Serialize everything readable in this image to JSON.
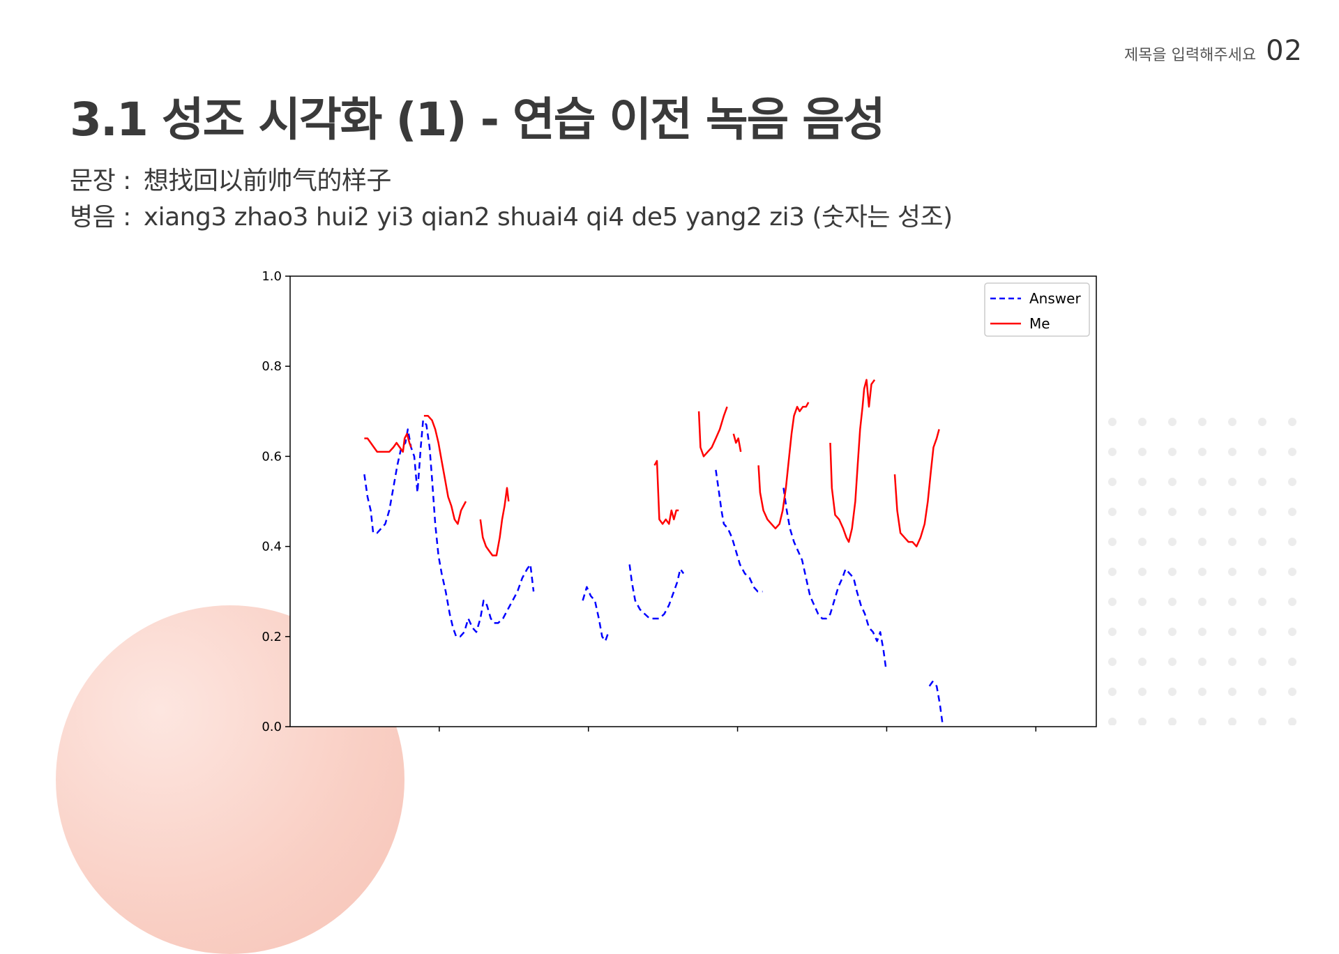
{
  "header": {
    "label": "제목을 입력해주세요",
    "page": "02"
  },
  "title": "3.1 성조 시각화 (1) - 연습 이전 녹음 음성",
  "sentence": {
    "key": "문장 :",
    "value": "想找回以前帅气的样子"
  },
  "pinyin": {
    "key": "병음 :",
    "value": "xiang3 zhao3 hui2 yi3 qian2 shuai4 qi4 de5 yang2 zi3 (숫자는 성조)"
  },
  "colors": {
    "answer": "#0000ff",
    "me": "#ff0000",
    "accent": "#f7c3b7"
  },
  "chart_data": {
    "type": "line",
    "title": "",
    "xlabel": "",
    "ylabel": "",
    "xlim": [
      0,
      100
    ],
    "ylim": [
      0.0,
      1.0
    ],
    "yticks": [
      "0.0",
      "0.2",
      "0.4",
      "0.6",
      "0.8",
      "1.0"
    ],
    "xticks": [
      18.5,
      37,
      55.5,
      74,
      92.5
    ],
    "legend_position": "top-right",
    "grid": false,
    "series": [
      {
        "name": "Answer",
        "style": "dashed",
        "segments": [
          [
            [
              9.2,
              0.56
            ],
            [
              9.6,
              0.51
            ],
            [
              10.0,
              0.48
            ],
            [
              10.3,
              0.43
            ],
            [
              10.8,
              0.43
            ],
            [
              11.3,
              0.44
            ],
            [
              11.8,
              0.45
            ],
            [
              12.3,
              0.48
            ],
            [
              12.8,
              0.53
            ],
            [
              13.3,
              0.58
            ],
            [
              13.8,
              0.62
            ],
            [
              14.3,
              0.63
            ],
            [
              14.6,
              0.66
            ],
            [
              15.0,
              0.62
            ],
            [
              15.4,
              0.6
            ],
            [
              15.8,
              0.52
            ],
            [
              16.2,
              0.62
            ],
            [
              16.5,
              0.68
            ],
            [
              16.9,
              0.67
            ],
            [
              17.3,
              0.62
            ],
            [
              17.6,
              0.55
            ],
            [
              18.0,
              0.45
            ],
            [
              18.4,
              0.38
            ],
            [
              18.8,
              0.34
            ],
            [
              19.3,
              0.3
            ],
            [
              19.8,
              0.25
            ],
            [
              20.2,
              0.22
            ],
            [
              20.6,
              0.2
            ],
            [
              21.1,
              0.2
            ],
            [
              21.6,
              0.21
            ],
            [
              22.1,
              0.24
            ],
            [
              22.6,
              0.22
            ],
            [
              23.1,
              0.21
            ],
            [
              23.6,
              0.24
            ],
            [
              24.0,
              0.28
            ],
            [
              24.4,
              0.27
            ],
            [
              24.9,
              0.24
            ],
            [
              25.3,
              0.23
            ],
            [
              25.8,
              0.23
            ],
            [
              26.4,
              0.24
            ],
            [
              27.0,
              0.26
            ],
            [
              27.6,
              0.28
            ],
            [
              28.2,
              0.3
            ],
            [
              28.8,
              0.33
            ],
            [
              29.4,
              0.35
            ],
            [
              29.8,
              0.36
            ],
            [
              30.2,
              0.3
            ]
          ],
          [
            [
              36.3,
              0.28
            ],
            [
              36.8,
              0.31
            ],
            [
              37.3,
              0.29
            ],
            [
              37.8,
              0.28
            ],
            [
              38.3,
              0.24
            ],
            [
              38.7,
              0.2
            ],
            [
              39.1,
              0.19
            ],
            [
              39.5,
              0.21
            ]
          ],
          [
            [
              42.1,
              0.36
            ],
            [
              42.4,
              0.32
            ],
            [
              42.8,
              0.28
            ],
            [
              43.4,
              0.26
            ],
            [
              44.0,
              0.25
            ],
            [
              44.6,
              0.24
            ],
            [
              45.2,
              0.24
            ],
            [
              45.8,
              0.24
            ],
            [
              46.4,
              0.25
            ],
            [
              47.0,
              0.27
            ],
            [
              47.6,
              0.3
            ],
            [
              48.0,
              0.32
            ],
            [
              48.4,
              0.35
            ],
            [
              48.8,
              0.34
            ]
          ],
          [
            [
              52.8,
              0.57
            ],
            [
              53.2,
              0.52
            ],
            [
              53.5,
              0.48
            ],
            [
              53.8,
              0.45
            ],
            [
              54.3,
              0.44
            ],
            [
              54.8,
              0.42
            ],
            [
              55.3,
              0.39
            ],
            [
              55.8,
              0.36
            ],
            [
              56.4,
              0.34
            ],
            [
              57.0,
              0.33
            ],
            [
              57.5,
              0.31
            ],
            [
              58.0,
              0.3
            ],
            [
              58.6,
              0.3
            ]
          ],
          [
            [
              61.2,
              0.53
            ],
            [
              61.6,
              0.48
            ],
            [
              62.0,
              0.44
            ],
            [
              62.5,
              0.41
            ],
            [
              63.0,
              0.39
            ],
            [
              63.5,
              0.37
            ],
            [
              64.0,
              0.33
            ],
            [
              64.5,
              0.29
            ],
            [
              65.0,
              0.27
            ],
            [
              65.5,
              0.25
            ],
            [
              66.0,
              0.24
            ],
            [
              66.5,
              0.24
            ],
            [
              67.0,
              0.25
            ],
            [
              67.5,
              0.28
            ],
            [
              68.0,
              0.31
            ],
            [
              68.5,
              0.33
            ],
            [
              68.9,
              0.35
            ],
            [
              69.4,
              0.34
            ],
            [
              69.9,
              0.33
            ],
            [
              70.3,
              0.3
            ],
            [
              70.8,
              0.27
            ],
            [
              71.3,
              0.25
            ],
            [
              71.8,
              0.22
            ],
            [
              72.3,
              0.21
            ],
            [
              72.8,
              0.19
            ],
            [
              73.2,
              0.21
            ],
            [
              73.6,
              0.17
            ],
            [
              73.9,
              0.13
            ]
          ],
          [
            [
              79.3,
              0.09
            ],
            [
              79.7,
              0.1
            ],
            [
              80.2,
              0.09
            ],
            [
              80.6,
              0.05
            ],
            [
              80.9,
              0.01
            ]
          ]
        ]
      },
      {
        "name": "Me",
        "style": "solid",
        "segments": [
          [
            [
              9.2,
              0.64
            ],
            [
              9.6,
              0.64
            ],
            [
              10.0,
              0.63
            ],
            [
              10.4,
              0.62
            ],
            [
              10.8,
              0.61
            ],
            [
              11.3,
              0.61
            ],
            [
              11.8,
              0.61
            ],
            [
              12.3,
              0.61
            ],
            [
              12.8,
              0.62
            ],
            [
              13.2,
              0.63
            ],
            [
              13.6,
              0.62
            ],
            [
              14.0,
              0.61
            ],
            [
              14.2,
              0.64
            ],
            [
              14.5,
              0.65
            ],
            [
              14.8,
              0.63
            ],
            [
              15.0,
              0.62
            ]
          ],
          [
            [
              16.6,
              0.69
            ],
            [
              17.1,
              0.69
            ],
            [
              17.6,
              0.68
            ],
            [
              18.0,
              0.66
            ],
            [
              18.4,
              0.63
            ],
            [
              18.8,
              0.59
            ],
            [
              19.2,
              0.55
            ],
            [
              19.6,
              0.51
            ],
            [
              20.0,
              0.49
            ],
            [
              20.4,
              0.46
            ],
            [
              20.8,
              0.45
            ],
            [
              21.2,
              0.48
            ],
            [
              21.5,
              0.49
            ],
            [
              21.8,
              0.5
            ]
          ],
          [
            [
              23.6,
              0.46
            ],
            [
              23.9,
              0.42
            ],
            [
              24.3,
              0.4
            ],
            [
              24.7,
              0.39
            ],
            [
              25.1,
              0.38
            ],
            [
              25.6,
              0.38
            ],
            [
              26.0,
              0.42
            ],
            [
              26.3,
              0.46
            ],
            [
              26.6,
              0.49
            ],
            [
              26.9,
              0.53
            ],
            [
              27.1,
              0.5
            ]
          ],
          [
            [
              45.2,
              0.58
            ],
            [
              45.5,
              0.59
            ],
            [
              45.8,
              0.46
            ],
            [
              46.2,
              0.45
            ],
            [
              46.6,
              0.46
            ],
            [
              47.0,
              0.45
            ],
            [
              47.3,
              0.48
            ],
            [
              47.6,
              0.46
            ],
            [
              47.9,
              0.48
            ],
            [
              48.2,
              0.48
            ]
          ],
          [
            [
              50.7,
              0.7
            ],
            [
              50.9,
              0.62
            ],
            [
              51.3,
              0.6
            ],
            [
              51.8,
              0.61
            ],
            [
              52.3,
              0.62
            ],
            [
              52.8,
              0.64
            ],
            [
              53.3,
              0.66
            ],
            [
              53.8,
              0.69
            ],
            [
              54.2,
              0.71
            ]
          ],
          [
            [
              55.0,
              0.65
            ],
            [
              55.3,
              0.63
            ],
            [
              55.6,
              0.64
            ],
            [
              55.9,
              0.61
            ]
          ],
          [
            [
              58.1,
              0.58
            ],
            [
              58.3,
              0.52
            ],
            [
              58.7,
              0.48
            ],
            [
              59.2,
              0.46
            ],
            [
              59.7,
              0.45
            ],
            [
              60.2,
              0.44
            ],
            [
              60.7,
              0.45
            ],
            [
              61.1,
              0.48
            ],
            [
              61.5,
              0.53
            ],
            [
              61.9,
              0.6
            ],
            [
              62.2,
              0.65
            ],
            [
              62.5,
              0.69
            ],
            [
              62.9,
              0.71
            ],
            [
              63.2,
              0.7
            ],
            [
              63.6,
              0.71
            ],
            [
              64.0,
              0.71
            ],
            [
              64.3,
              0.72
            ]
          ],
          [
            [
              67.0,
              0.63
            ],
            [
              67.2,
              0.53
            ],
            [
              67.6,
              0.47
            ],
            [
              68.1,
              0.46
            ],
            [
              68.6,
              0.44
            ],
            [
              69.0,
              0.42
            ],
            [
              69.3,
              0.41
            ],
            [
              69.7,
              0.44
            ],
            [
              70.1,
              0.5
            ],
            [
              70.4,
              0.58
            ],
            [
              70.7,
              0.66
            ],
            [
              71.0,
              0.71
            ],
            [
              71.2,
              0.75
            ],
            [
              71.5,
              0.77
            ],
            [
              71.8,
              0.71
            ],
            [
              72.1,
              0.76
            ],
            [
              72.5,
              0.77
            ]
          ],
          [
            [
              75.0,
              0.56
            ],
            [
              75.3,
              0.48
            ],
            [
              75.7,
              0.43
            ],
            [
              76.2,
              0.42
            ],
            [
              76.7,
              0.41
            ],
            [
              77.2,
              0.41
            ],
            [
              77.7,
              0.4
            ],
            [
              78.2,
              0.42
            ],
            [
              78.7,
              0.45
            ],
            [
              79.1,
              0.5
            ],
            [
              79.5,
              0.57
            ],
            [
              79.8,
              0.62
            ],
            [
              80.2,
              0.64
            ],
            [
              80.5,
              0.66
            ]
          ]
        ]
      }
    ]
  }
}
